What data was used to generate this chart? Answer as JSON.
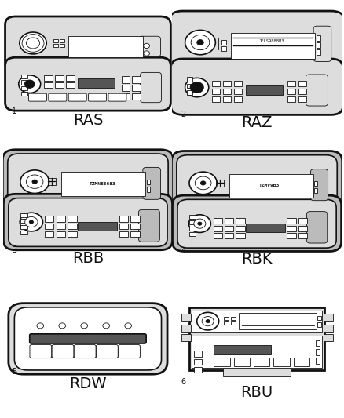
{
  "cells": [
    {
      "num": "1",
      "label": "RAS"
    },
    {
      "num": "2",
      "label": "RAZ"
    },
    {
      "num": "3",
      "label": "RBB"
    },
    {
      "num": "4",
      "label": "RBK"
    },
    {
      "num": "5",
      "label": "RDW"
    },
    {
      "num": "6",
      "label": "RBU"
    }
  ],
  "bg_color": "#ffffff",
  "grid_color": "#000000",
  "label_fontsize": 14,
  "num_fontsize": 7
}
